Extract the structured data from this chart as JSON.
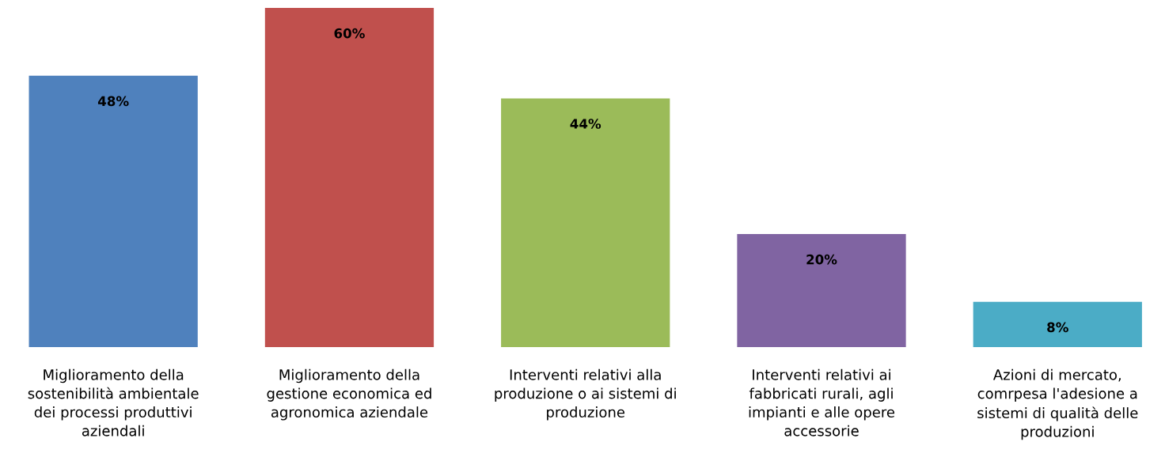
{
  "chart_data": {
    "type": "bar",
    "categories": [
      "Miglioramento della\nsostenibilità ambientale\ndei processi produttivi\naziendali",
      "Miglioramento della\ngestione economica ed\nagronomica aziendale",
      "Interventi relativi alla\nproduzione o ai sistemi di\nproduzione",
      "Interventi relativi ai\nfabbricati rurali, agli\nimpianti e alle opere\naccessorie",
      "Azioni di mercato,\ncomrpesa l'adesione a\nsistemi di qualità delle\nproduzioni"
    ],
    "values": [
      48,
      60,
      44,
      20,
      8
    ],
    "colors": [
      "#4f81bd",
      "#c0504d",
      "#9bbb59",
      "#8064a2",
      "#4bacc6"
    ],
    "value_labels": [
      "48%",
      "60%",
      "44%",
      "20%",
      "8%"
    ],
    "tick_labels": "x",
    "grid": false,
    "legend": false
  }
}
